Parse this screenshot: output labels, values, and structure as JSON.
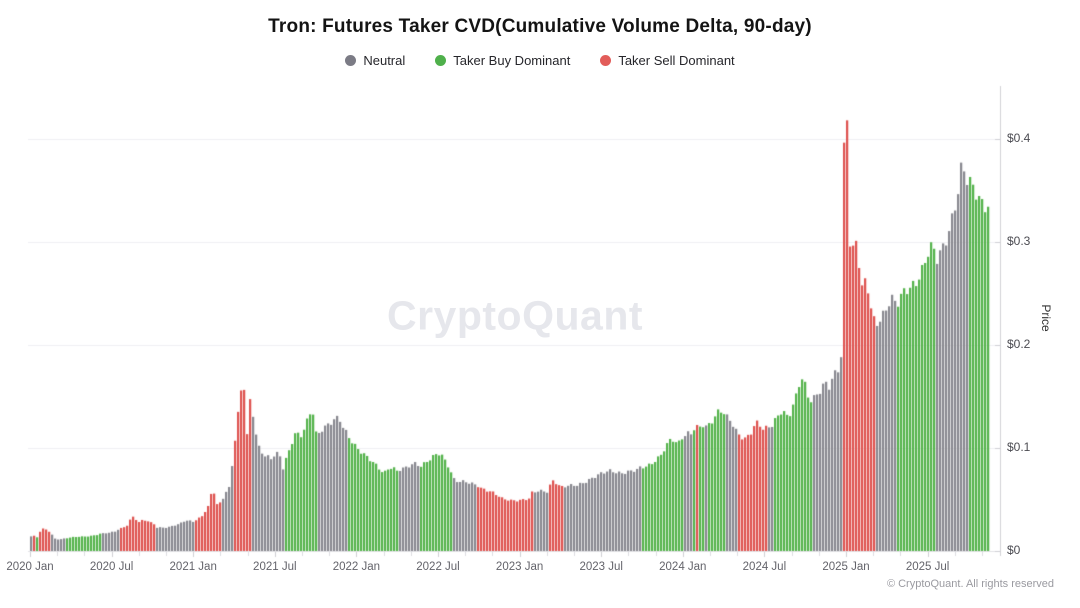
{
  "title": "Tron: Futures Taker CVD(Cumulative Volume Delta, 90-day)",
  "watermark": "CryptoQuant",
  "footer": "© CryptoQuant. All rights reserved",
  "legend": [
    {
      "label": "Neutral",
      "color": "#7b7b85"
    },
    {
      "label": "Taker Buy Dominant",
      "color": "#4fb04b"
    },
    {
      "label": "Taker Sell Dominant",
      "color": "#e25c59"
    }
  ],
  "chart_data": {
    "type": "bar",
    "title": "Tron: Futures Taker CVD(Cumulative Volume Delta, 90-day)",
    "xlabel": "",
    "ylabel": "Price",
    "legend_position": "top",
    "grid": "horizontal",
    "xlim": [
      2020.0,
      2025.9
    ],
    "ylim": [
      0,
      0.45
    ],
    "y_ticks": [
      "$0",
      "$0.1",
      "$0.2",
      "$0.3",
      "$0.4"
    ],
    "y_tick_values": [
      0,
      0.1,
      0.2,
      0.3,
      0.4
    ],
    "x_ticks": [
      "2020 Jan",
      "2020 Jul",
      "2021 Jan",
      "2021 Jul",
      "2022 Jan",
      "2022 Jul",
      "2023 Jan",
      "2023 Jul",
      "2024 Jan",
      "2024 Jul",
      "2025 Jan",
      "2025 Jul"
    ],
    "x_tick_values": [
      2020.0,
      2020.5,
      2021.0,
      2021.5,
      2022.0,
      2022.5,
      2023.0,
      2023.5,
      2024.0,
      2024.5,
      2025.0,
      2025.5
    ],
    "series_colors": {
      "neutral": "#88888f",
      "buy": "#54b34b",
      "sell": "#de5350"
    },
    "unit": "USD price of TRX colored by taker CVD dominance",
    "segments": [
      {
        "dominance": "neutral",
        "points": [
          [
            2020.0,
            0.013
          ],
          [
            2020.018,
            0.0145
          ]
        ]
      },
      {
        "dominance": "sell",
        "points": [
          [
            2020.018,
            0.015
          ],
          [
            2020.037,
            0.013
          ]
        ]
      },
      {
        "dominance": "buy",
        "points": [
          [
            2020.037,
            0.0135
          ],
          [
            2020.055,
            0.013
          ]
        ]
      },
      {
        "dominance": "sell",
        "points": [
          [
            2020.055,
            0.016
          ],
          [
            2020.085,
            0.0215
          ],
          [
            2020.11,
            0.019
          ],
          [
            2020.135,
            0.0145
          ]
        ]
      },
      {
        "dominance": "neutral",
        "points": [
          [
            2020.135,
            0.0125
          ],
          [
            2020.18,
            0.011
          ],
          [
            2020.215,
            0.012
          ]
        ]
      },
      {
        "dominance": "buy",
        "points": [
          [
            2020.215,
            0.012
          ],
          [
            2020.28,
            0.0135
          ],
          [
            2020.37,
            0.0145
          ],
          [
            2020.43,
            0.016
          ]
        ]
      },
      {
        "dominance": "neutral",
        "points": [
          [
            2020.43,
            0.0165
          ],
          [
            2020.49,
            0.0175
          ],
          [
            2020.54,
            0.0195
          ]
        ]
      },
      {
        "dominance": "sell",
        "points": [
          [
            2020.54,
            0.0205
          ],
          [
            2020.6,
            0.0245
          ],
          [
            2020.632,
            0.033
          ],
          [
            2020.66,
            0.026
          ],
          [
            2020.7,
            0.03
          ],
          [
            2020.745,
            0.027
          ],
          [
            2020.77,
            0.0255
          ]
        ]
      },
      {
        "dominance": "neutral",
        "points": [
          [
            2020.77,
            0.023
          ],
          [
            2020.85,
            0.0225
          ],
          [
            2020.92,
            0.026
          ],
          [
            2020.96,
            0.03
          ],
          [
            2021.01,
            0.028
          ]
        ]
      },
      {
        "dominance": "sell",
        "points": [
          [
            2021.01,
            0.029
          ],
          [
            2021.06,
            0.033
          ],
          [
            2021.1,
            0.043
          ],
          [
            2021.122,
            0.058
          ],
          [
            2021.14,
            0.044
          ],
          [
            2021.165,
            0.047
          ],
          [
            2021.178,
            0.045
          ]
        ]
      },
      {
        "dominance": "neutral",
        "points": [
          [
            2021.178,
            0.048
          ],
          [
            2021.215,
            0.06
          ],
          [
            2021.24,
            0.062
          ]
        ]
      },
      {
        "dominance": "sell",
        "points": [
          [
            2021.24,
            0.075
          ],
          [
            2021.27,
            0.115
          ],
          [
            2021.307,
            0.162
          ],
          [
            2021.32,
            0.115
          ],
          [
            2021.335,
            0.1
          ],
          [
            2021.35,
            0.152
          ],
          [
            2021.362,
            0.13
          ]
        ]
      },
      {
        "dominance": "neutral",
        "points": [
          [
            2021.362,
            0.128
          ],
          [
            2021.39,
            0.103
          ],
          [
            2021.43,
            0.092
          ],
          [
            2021.48,
            0.088
          ],
          [
            2021.52,
            0.095
          ],
          [
            2021.545,
            0.08
          ],
          [
            2021.564,
            0.082
          ]
        ]
      },
      {
        "dominance": "buy",
        "points": [
          [
            2021.564,
            0.085
          ],
          [
            2021.6,
            0.1
          ],
          [
            2021.63,
            0.115
          ],
          [
            2021.65,
            0.105
          ],
          [
            2021.69,
            0.118
          ],
          [
            2021.728,
            0.135
          ],
          [
            2021.745,
            0.115
          ],
          [
            2021.76,
            0.112
          ]
        ]
      },
      {
        "dominance": "neutral",
        "points": [
          [
            2021.76,
            0.112
          ],
          [
            2021.8,
            0.12
          ],
          [
            2021.85,
            0.124
          ],
          [
            2021.887,
            0.128
          ],
          [
            2021.91,
            0.12
          ],
          [
            2021.94,
            0.113
          ]
        ]
      },
      {
        "dominance": "buy",
        "points": [
          [
            2021.94,
            0.113
          ],
          [
            2022.0,
            0.1
          ],
          [
            2022.06,
            0.09
          ],
          [
            2022.12,
            0.082
          ],
          [
            2022.17,
            0.075
          ],
          [
            2022.21,
            0.082
          ],
          [
            2022.265,
            0.074
          ]
        ]
      },
      {
        "dominance": "neutral",
        "points": [
          [
            2022.265,
            0.078
          ],
          [
            2022.31,
            0.08
          ],
          [
            2022.365,
            0.086
          ],
          [
            2022.39,
            0.08
          ]
        ]
      },
      {
        "dominance": "buy",
        "points": [
          [
            2022.39,
            0.082
          ],
          [
            2022.45,
            0.088
          ],
          [
            2022.51,
            0.094
          ],
          [
            2022.56,
            0.082
          ],
          [
            2022.592,
            0.07
          ]
        ]
      },
      {
        "dominance": "neutral",
        "points": [
          [
            2022.592,
            0.069
          ],
          [
            2022.65,
            0.067
          ],
          [
            2022.72,
            0.064
          ],
          [
            2022.745,
            0.063
          ]
        ]
      },
      {
        "dominance": "sell",
        "points": [
          [
            2022.745,
            0.062
          ],
          [
            2022.82,
            0.058
          ],
          [
            2022.89,
            0.05
          ],
          [
            2022.95,
            0.049
          ],
          [
            2023.02,
            0.05
          ],
          [
            2023.08,
            0.051
          ]
        ]
      },
      {
        "dominance": "neutral",
        "points": [
          [
            2023.08,
            0.056
          ],
          [
            2023.13,
            0.058
          ],
          [
            2023.185,
            0.058
          ]
        ]
      },
      {
        "dominance": "sell",
        "points": [
          [
            2023.185,
            0.06
          ],
          [
            2023.205,
            0.069
          ],
          [
            2023.23,
            0.064
          ],
          [
            2023.275,
            0.06
          ]
        ]
      },
      {
        "dominance": "neutral",
        "points": [
          [
            2023.275,
            0.062
          ],
          [
            2023.36,
            0.064
          ],
          [
            2023.44,
            0.07
          ],
          [
            2023.5,
            0.074
          ],
          [
            2023.56,
            0.078
          ],
          [
            2023.62,
            0.076
          ],
          [
            2023.7,
            0.077
          ],
          [
            2023.74,
            0.079
          ]
        ]
      },
      {
        "dominance": "buy",
        "points": [
          [
            2023.74,
            0.08
          ],
          [
            2023.8,
            0.084
          ],
          [
            2023.87,
            0.092
          ],
          [
            2023.935,
            0.108
          ],
          [
            2023.97,
            0.102
          ],
          [
            2024.005,
            0.112
          ]
        ]
      },
      {
        "dominance": "neutral",
        "points": [
          [
            2024.005,
            0.112
          ],
          [
            2024.04,
            0.115
          ],
          [
            2024.06,
            0.113
          ]
        ]
      },
      {
        "dominance": "buy",
        "points": [
          [
            2024.06,
            0.115
          ],
          [
            2024.085,
            0.12
          ]
        ]
      },
      {
        "dominance": "sell",
        "points": [
          [
            2024.085,
            0.118
          ],
          [
            2024.105,
            0.115
          ]
        ]
      },
      {
        "dominance": "buy",
        "points": [
          [
            2024.105,
            0.118
          ],
          [
            2024.13,
            0.122
          ]
        ]
      },
      {
        "dominance": "neutral",
        "points": [
          [
            2024.13,
            0.12
          ],
          [
            2024.155,
            0.118
          ]
        ]
      },
      {
        "dominance": "buy",
        "points": [
          [
            2024.155,
            0.12
          ],
          [
            2024.2,
            0.13
          ],
          [
            2024.228,
            0.138
          ],
          [
            2024.25,
            0.133
          ],
          [
            2024.27,
            0.128
          ]
        ]
      },
      {
        "dominance": "neutral",
        "points": [
          [
            2024.27,
            0.13
          ],
          [
            2024.31,
            0.118
          ],
          [
            2024.33,
            0.112
          ]
        ]
      },
      {
        "dominance": "sell",
        "points": [
          [
            2024.33,
            0.113
          ],
          [
            2024.38,
            0.108
          ],
          [
            2024.42,
            0.115
          ],
          [
            2024.455,
            0.125
          ],
          [
            2024.49,
            0.116
          ],
          [
            2024.52,
            0.118
          ]
        ]
      },
      {
        "dominance": "neutral",
        "points": [
          [
            2024.52,
            0.118
          ],
          [
            2024.55,
            0.121
          ]
        ]
      },
      {
        "dominance": "buy",
        "points": [
          [
            2024.55,
            0.12
          ],
          [
            2024.608,
            0.137
          ],
          [
            2024.65,
            0.128
          ],
          [
            2024.7,
            0.148
          ],
          [
            2024.731,
            0.166
          ],
          [
            2024.76,
            0.15
          ],
          [
            2024.798,
            0.145
          ]
        ]
      },
      {
        "dominance": "neutral",
        "points": [
          [
            2024.798,
            0.148
          ],
          [
            2024.84,
            0.155
          ],
          [
            2024.87,
            0.162
          ],
          [
            2024.9,
            0.156
          ],
          [
            2024.93,
            0.168
          ],
          [
            2024.96,
            0.175
          ],
          [
            2024.978,
            0.19
          ]
        ]
      },
      {
        "dominance": "sell",
        "points": [
          [
            2024.978,
            0.21
          ],
          [
            2025.0,
            0.433
          ],
          [
            2025.014,
            0.31
          ],
          [
            2025.035,
            0.275
          ],
          [
            2025.06,
            0.305
          ],
          [
            2025.09,
            0.245
          ],
          [
            2025.12,
            0.26
          ],
          [
            2025.15,
            0.23
          ],
          [
            2025.185,
            0.215
          ]
        ]
      },
      {
        "dominance": "neutral",
        "points": [
          [
            2025.185,
            0.22
          ],
          [
            2025.23,
            0.23
          ],
          [
            2025.28,
            0.245
          ],
          [
            2025.313,
            0.232
          ]
        ]
      },
      {
        "dominance": "buy",
        "points": [
          [
            2025.313,
            0.235
          ],
          [
            2025.37,
            0.252
          ],
          [
            2025.43,
            0.262
          ],
          [
            2025.48,
            0.275
          ],
          [
            2025.52,
            0.292
          ],
          [
            2025.546,
            0.285
          ]
        ]
      },
      {
        "dominance": "neutral",
        "points": [
          [
            2025.546,
            0.275
          ],
          [
            2025.6,
            0.295
          ],
          [
            2025.65,
            0.32
          ],
          [
            2025.69,
            0.345
          ],
          [
            2025.713,
            0.367
          ],
          [
            2025.74,
            0.355
          ],
          [
            2025.76,
            0.35
          ]
        ]
      },
      {
        "dominance": "buy",
        "points": [
          [
            2025.76,
            0.355
          ],
          [
            2025.79,
            0.35
          ],
          [
            2025.83,
            0.34
          ],
          [
            2025.884,
            0.334
          ]
        ]
      }
    ]
  }
}
